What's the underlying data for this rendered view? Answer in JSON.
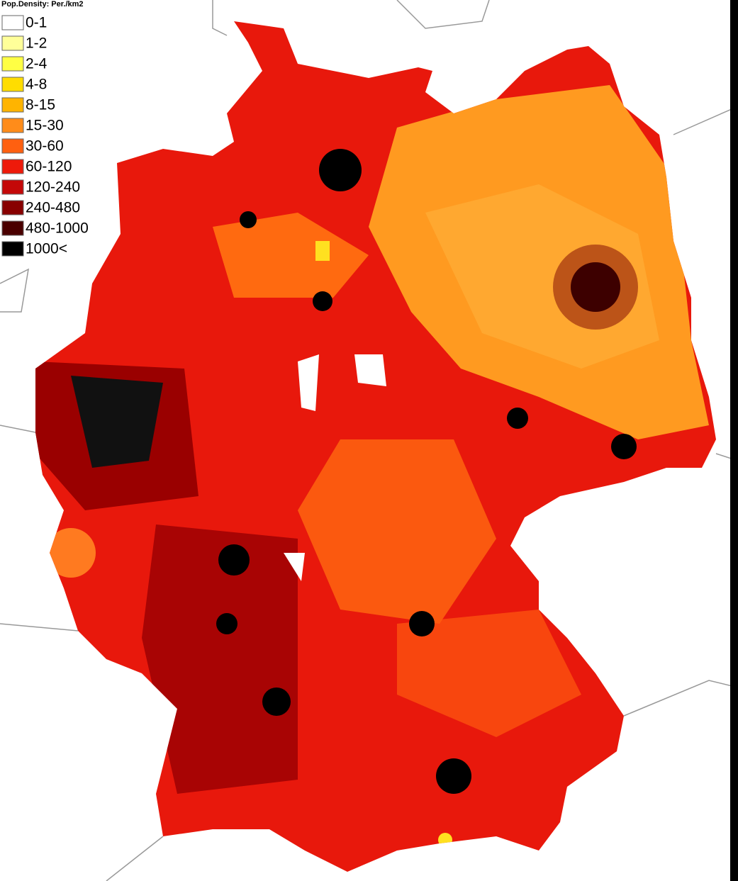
{
  "legend": {
    "title": "Pop.Density: Per./km2",
    "items": [
      {
        "label": "0-1",
        "color": "#ffffff"
      },
      {
        "label": "1-2",
        "color": "#ffff99"
      },
      {
        "label": "2-4",
        "color": "#ffff44"
      },
      {
        "label": "4-8",
        "color": "#ffdd00"
      },
      {
        "label": "8-15",
        "color": "#ffb400"
      },
      {
        "label": "15-30",
        "color": "#ff8c1a"
      },
      {
        "label": "30-60",
        "color": "#ff6010"
      },
      {
        "label": "60-120",
        "color": "#ee1a0a"
      },
      {
        "label": "120-240",
        "color": "#c40808"
      },
      {
        "label": "240-480",
        "color": "#880000"
      },
      {
        "label": "480-1000",
        "color": "#4a0000"
      },
      {
        "label": "1000<",
        "color": "#000000"
      }
    ]
  }
}
